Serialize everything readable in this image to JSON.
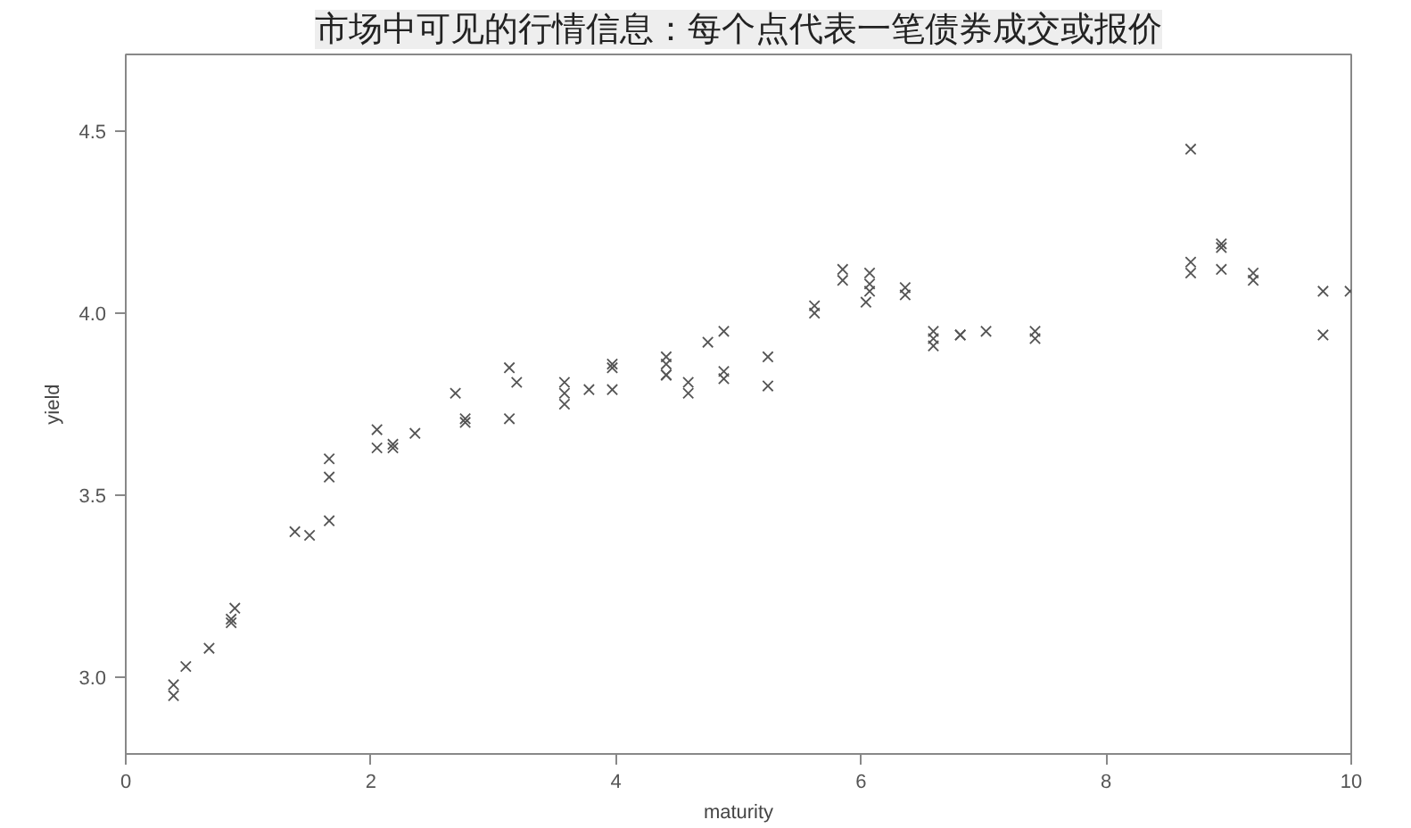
{
  "chart_data": {
    "type": "scatter",
    "title": "市场中可见的行情信息：每个点代表一笔债券成交或报价",
    "xlabel": "maturity",
    "ylabel": "yield",
    "x": [
      0.39,
      0.39,
      0.49,
      0.68,
      0.86,
      0.86,
      0.89,
      1.38,
      1.5,
      1.66,
      1.66,
      1.66,
      2.05,
      2.05,
      2.18,
      2.18,
      2.36,
      2.69,
      2.77,
      2.77,
      3.13,
      3.19,
      3.13,
      3.58,
      3.58,
      3.58,
      3.78,
      3.97,
      3.97,
      3.97,
      4.41,
      4.41,
      4.41,
      4.41,
      4.59,
      4.59,
      4.75,
      4.88,
      4.88,
      4.88,
      5.24,
      5.24,
      5.62,
      5.62,
      5.85,
      5.85,
      6.04,
      6.07,
      6.07,
      6.07,
      6.36,
      6.36,
      6.59,
      6.59,
      6.59,
      6.81,
      6.81,
      7.02,
      7.42,
      7.42,
      8.69,
      8.69,
      8.69,
      8.94,
      8.94,
      8.94,
      9.2,
      9.2,
      9.77,
      9.77,
      9.99
    ],
    "series": [
      {
        "color": "#555555",
        "values": [
          2.95,
          2.98,
          3.03,
          3.08,
          3.16,
          3.15,
          3.19,
          3.4,
          3.39,
          3.43,
          3.55,
          3.6,
          3.68,
          3.63,
          3.63,
          3.64,
          3.67,
          3.78,
          3.71,
          3.7,
          3.85,
          3.81,
          3.71,
          3.81,
          3.78,
          3.75,
          3.79,
          3.86,
          3.85,
          3.79,
          3.88,
          3.86,
          3.83,
          3.83,
          3.81,
          3.78,
          3.92,
          3.95,
          3.84,
          3.82,
          3.88,
          3.8,
          4.02,
          4.0,
          4.12,
          4.09,
          4.03,
          4.11,
          4.08,
          4.06,
          4.07,
          4.05,
          3.95,
          3.93,
          3.91,
          3.94,
          3.94,
          3.95,
          3.95,
          3.93,
          4.45,
          4.14,
          4.11,
          4.18,
          4.19,
          4.12,
          4.11,
          4.09,
          4.06,
          3.94,
          4.06
        ]
      }
    ],
    "xlim": [
      0,
      10
    ],
    "ylim": [
      2.79,
      4.71
    ],
    "xticks": [
      0,
      2,
      4,
      6,
      8,
      10
    ],
    "yticks": [
      {
        "value": 3,
        "label": "3.0"
      },
      {
        "value": 3.5,
        "label": "3.5"
      },
      {
        "value": 4,
        "label": "4.0"
      },
      {
        "value": 4.5,
        "label": "4.5"
      }
    ],
    "marker": "cross",
    "grid": false
  }
}
